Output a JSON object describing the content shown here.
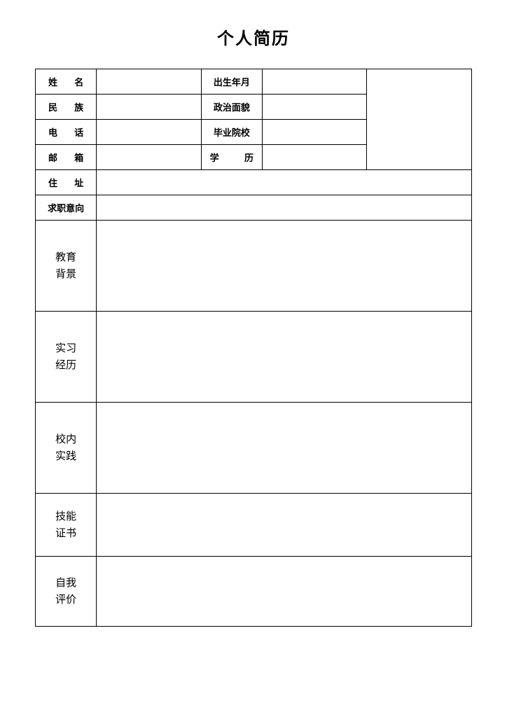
{
  "title": "个人简历",
  "labels": {
    "name": "姓名",
    "birth": "出生年月",
    "ethnicity": "民族",
    "political": "政治面貌",
    "phone": "电话",
    "school": "毕业院校",
    "email": "邮箱",
    "degree": "学历",
    "address": "住址",
    "intention": "求职意向"
  },
  "sections": {
    "education": "教育\n背景",
    "internship": "实习\n经历",
    "practice": "校内\n实践",
    "skills": "技能\n证书",
    "self_eval": "自我\n评价"
  },
  "values": {
    "name": "",
    "birth": "",
    "ethnicity": "",
    "political": "",
    "phone": "",
    "school": "",
    "email": "",
    "degree": "",
    "address": "",
    "intention": "",
    "education": "",
    "internship": "",
    "practice": "",
    "skills": "",
    "self_eval": ""
  },
  "layout": {
    "col_widths_pct": [
      14,
      24,
      14,
      24,
      24
    ],
    "border_color": "#000000",
    "background_color": "#ffffff",
    "title_fontsize": 24,
    "label_fontsize": 13,
    "section_label_fontsize": 15,
    "header_row_height": 36,
    "large_section_height": 130,
    "medium_section_height": 90
  }
}
